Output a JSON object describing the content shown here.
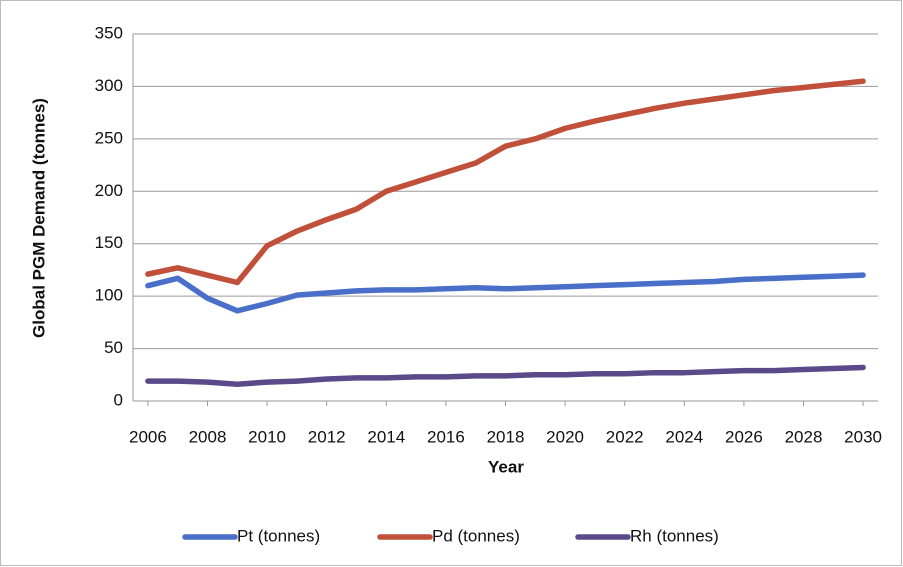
{
  "chart_data": {
    "type": "line",
    "y_label": "Global PGM Demand (tonnes)",
    "x_label": "Year",
    "x": [
      2006,
      2007,
      2008,
      2009,
      2010,
      2011,
      2012,
      2013,
      2014,
      2015,
      2016,
      2017,
      2018,
      2019,
      2020,
      2021,
      2022,
      2023,
      2024,
      2025,
      2026,
      2027,
      2028,
      2029,
      2030
    ],
    "series": [
      {
        "name": "Pt (tonnes)",
        "color": "#4a6fc9",
        "values": [
          110,
          117,
          98,
          86,
          93,
          101,
          103,
          105,
          106,
          106,
          107,
          108,
          107,
          108,
          109,
          110,
          111,
          112,
          113,
          114,
          116,
          117,
          118,
          119,
          120
        ]
      },
      {
        "name": "Pd (tonnes)",
        "color": "#c0503a",
        "values": [
          121,
          127,
          120,
          113,
          148,
          162,
          173,
          183,
          200,
          209,
          218,
          227,
          243,
          250,
          260,
          267,
          273,
          279,
          284,
          288,
          292,
          296,
          299,
          302,
          305
        ]
      },
      {
        "name": "Rh (tonnes)",
        "color": "#5b4a8a",
        "values": [
          19,
          19,
          18,
          16,
          18,
          19,
          21,
          22,
          22,
          23,
          23,
          24,
          24,
          25,
          25,
          26,
          26,
          27,
          27,
          28,
          29,
          29,
          30,
          31,
          32
        ]
      }
    ],
    "xlim": [
      2005.5,
      2030.5
    ],
    "xticks": [
      2006,
      2008,
      2010,
      2012,
      2014,
      2016,
      2018,
      2020,
      2022,
      2024,
      2026,
      2028,
      2030
    ],
    "ylim": [
      0,
      350
    ],
    "yticks": [
      0,
      50,
      100,
      150,
      200,
      250,
      300,
      350
    ],
    "grid": true,
    "legend": "bottom"
  }
}
